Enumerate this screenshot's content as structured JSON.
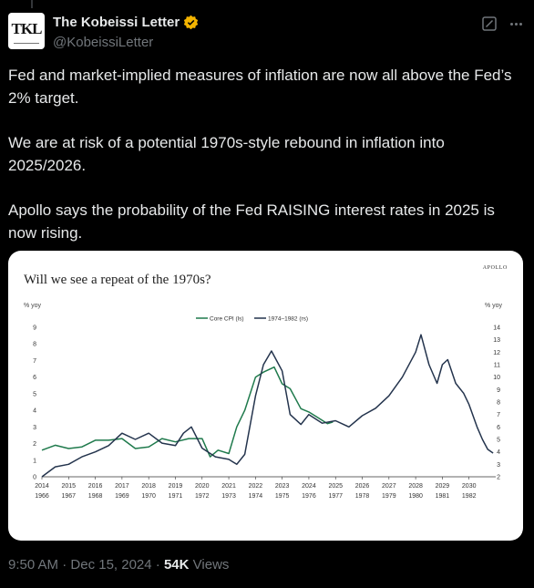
{
  "author": {
    "name": "The Kobeissi Letter",
    "handle": "@KobeissiLetter",
    "avatar_text": "TKL"
  },
  "tweet": {
    "paragraphs": [
      "Fed and market-implied measures of inflation are now all above the Fed’s 2% target.",
      "We are at risk of a potential 1970s-style rebound in inflation into 2025/2026.",
      "Apollo says the probability of the Fed RAISING interest rates in 2025 is now rising."
    ]
  },
  "meta": {
    "time": "9:50 AM",
    "sep1": " · ",
    "date": "Dec 15, 2024",
    "sep2": " · ",
    "views_count": "54K",
    "views_label": " Views"
  },
  "colors": {
    "verified": "#f4b400",
    "green_series": "#1f7a4c",
    "navy_series": "#24344d"
  },
  "icons": {
    "verified": "verified-badge-icon",
    "grok": "grok-icon",
    "more": "more-options-icon"
  },
  "chart_data": {
    "type": "line",
    "title": "Will we see a repeat of the 1970s?",
    "brand": "APOLLO",
    "ylabel_left": "% yoy",
    "ylabel_right": "% yoy",
    "ylim_left": [
      0,
      9
    ],
    "ylim_right": [
      2,
      14
    ],
    "yticks_left": [
      "0",
      "1",
      "2",
      "3",
      "4",
      "5",
      "6",
      "7",
      "8",
      "9"
    ],
    "yticks_right": [
      "2",
      "3",
      "4",
      "5",
      "6",
      "7",
      "8",
      "9",
      "10",
      "11",
      "12",
      "13",
      "14"
    ],
    "xticks_top": [
      "2014",
      "2015",
      "2016",
      "2017",
      "2018",
      "2019",
      "2020",
      "2021",
      "2022",
      "2023",
      "2024",
      "2025",
      "2026",
      "2027",
      "2028",
      "2029",
      "2030"
    ],
    "xticks_bottom": [
      "1966",
      "1967",
      "1968",
      "1969",
      "1970",
      "1971",
      "1972",
      "1973",
      "1974",
      "1975",
      "1976",
      "1977",
      "1978",
      "1979",
      "1980",
      "1981",
      "1982"
    ],
    "legend_position": "top-center",
    "grid": false,
    "series": [
      {
        "name": "Core CPI (ls)",
        "axis": "left",
        "points": [
          [
            2014.0,
            1.6
          ],
          [
            2014.5,
            1.9
          ],
          [
            2015.0,
            1.7
          ],
          [
            2015.5,
            1.8
          ],
          [
            2016.0,
            2.2
          ],
          [
            2016.5,
            2.2
          ],
          [
            2017.0,
            2.3
          ],
          [
            2017.5,
            1.7
          ],
          [
            2018.0,
            1.8
          ],
          [
            2018.5,
            2.3
          ],
          [
            2019.0,
            2.1
          ],
          [
            2019.5,
            2.3
          ],
          [
            2020.0,
            2.3
          ],
          [
            2020.3,
            1.2
          ],
          [
            2020.6,
            1.6
          ],
          [
            2021.0,
            1.4
          ],
          [
            2021.3,
            3.0
          ],
          [
            2021.6,
            4.0
          ],
          [
            2022.0,
            6.0
          ],
          [
            2022.3,
            6.3
          ],
          [
            2022.7,
            6.6
          ],
          [
            2023.0,
            5.6
          ],
          [
            2023.3,
            5.3
          ],
          [
            2023.7,
            4.1
          ],
          [
            2024.0,
            3.9
          ],
          [
            2024.3,
            3.6
          ],
          [
            2024.7,
            3.2
          ],
          [
            2024.9,
            3.3
          ]
        ]
      },
      {
        "name": "1974–1982 (rs)",
        "axis": "right",
        "points": [
          [
            2014.0,
            2.0
          ],
          [
            2014.5,
            2.8
          ],
          [
            2015.0,
            3.0
          ],
          [
            2015.5,
            3.6
          ],
          [
            2016.0,
            4.0
          ],
          [
            2016.5,
            4.5
          ],
          [
            2017.0,
            5.5
          ],
          [
            2017.5,
            5.0
          ],
          [
            2018.0,
            5.5
          ],
          [
            2018.5,
            4.7
          ],
          [
            2019.0,
            4.5
          ],
          [
            2019.3,
            5.5
          ],
          [
            2019.6,
            6.0
          ],
          [
            2020.0,
            4.3
          ],
          [
            2020.5,
            3.6
          ],
          [
            2021.0,
            3.4
          ],
          [
            2021.3,
            3.0
          ],
          [
            2021.6,
            3.8
          ],
          [
            2022.0,
            8.5
          ],
          [
            2022.3,
            11.0
          ],
          [
            2022.6,
            12.1
          ],
          [
            2023.0,
            10.5
          ],
          [
            2023.3,
            7.0
          ],
          [
            2023.7,
            6.2
          ],
          [
            2024.0,
            7.0
          ],
          [
            2024.5,
            6.3
          ],
          [
            2025.0,
            6.5
          ],
          [
            2025.5,
            6.0
          ],
          [
            2026.0,
            6.9
          ],
          [
            2026.5,
            7.5
          ],
          [
            2027.0,
            8.5
          ],
          [
            2027.5,
            10.0
          ],
          [
            2028.0,
            12.0
          ],
          [
            2028.2,
            13.4
          ],
          [
            2028.5,
            11.0
          ],
          [
            2028.8,
            9.5
          ],
          [
            2029.0,
            11.0
          ],
          [
            2029.2,
            11.4
          ],
          [
            2029.5,
            9.5
          ],
          [
            2029.8,
            8.7
          ],
          [
            2030.0,
            7.8
          ],
          [
            2030.3,
            6.0
          ],
          [
            2030.5,
            5.0
          ],
          [
            2030.7,
            4.2
          ],
          [
            2030.9,
            3.9
          ]
        ]
      }
    ]
  }
}
